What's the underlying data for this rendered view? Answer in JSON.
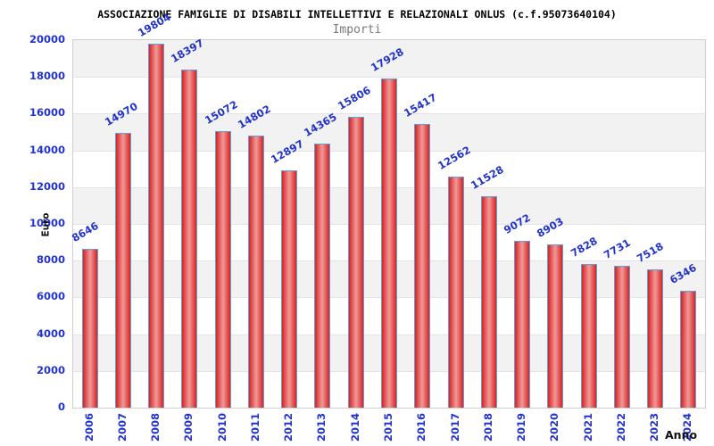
{
  "chart_data": {
    "type": "bar",
    "title": "ASSOCIAZIONE FAMIGLIE DI DISABILI INTELLETTIVI E RELAZIONALI ONLUS (c.f.95073640104)",
    "subtitle": "Importi",
    "xlabel": "Anno",
    "ylabel": "Euro",
    "categories": [
      "2006",
      "2007",
      "2008",
      "2009",
      "2010",
      "2011",
      "2012",
      "2013",
      "2014",
      "2015",
      "2016",
      "2017",
      "2018",
      "2019",
      "2020",
      "2021",
      "2022",
      "2023",
      "2024"
    ],
    "values": [
      8646,
      14970,
      19804,
      18397,
      15072,
      14802,
      12897,
      14365,
      15806,
      17928,
      15417,
      12562,
      11528,
      9072,
      8903,
      7828,
      7731,
      7518,
      6346
    ],
    "ylim": [
      0,
      20000
    ],
    "ytick_step": 2000,
    "yticks": [
      "0",
      "2000",
      "4000",
      "6000",
      "8000",
      "10000",
      "12000",
      "14000",
      "16000",
      "18000",
      "20000"
    ],
    "grid": "alternating-horizontal-bands",
    "legend": "none",
    "colors": {
      "bar_edge": "#d92222",
      "bar_center": "#f09999",
      "bar_border": "#5e9fdc",
      "axis_label_blue": "#2233cc",
      "band_gray": "#f2f2f2",
      "band_white": "#ffffff",
      "title_black": "#000000",
      "subtitle_gray": "#7a7a7a"
    }
  }
}
